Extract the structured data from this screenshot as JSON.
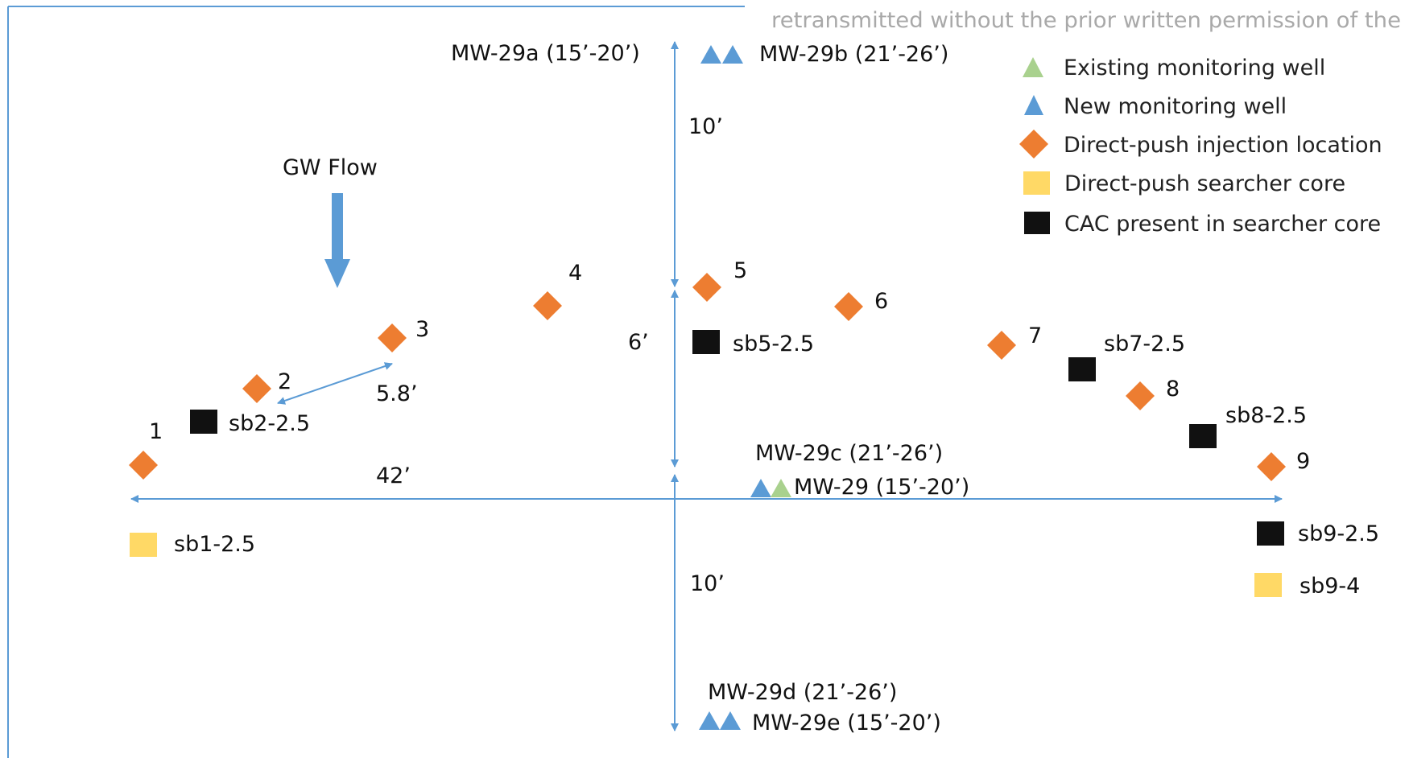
{
  "watermark": "retransmitted without the prior written permission of the",
  "colors": {
    "frame": "#5b9bd5",
    "arrow": "#5b9bd5",
    "injection": "#ed7d31",
    "searcher_core": "#ffd966",
    "cac_core": "#111111",
    "new_well": "#5b9bd5",
    "existing_well": "#a9d18e"
  },
  "legend": [
    {
      "label": "Existing monitoring well",
      "icon": "existing-well-triangle-icon"
    },
    {
      "label": "New monitoring well",
      "icon": "new-well-triangle-icon"
    },
    {
      "label": "Direct-push injection location",
      "icon": "injection-diamond-icon"
    },
    {
      "label": "Direct-push searcher core",
      "icon": "searcher-core-square-icon"
    },
    {
      "label": "CAC present in searcher core",
      "icon": "cac-core-square-icon"
    }
  ],
  "flow_label": "GW Flow",
  "wells": {
    "mw29a": "MW-29a (15’-20’)",
    "mw29b": "MW-29b (21’-26’)",
    "mw29c": "MW-29c (21’-26’)",
    "mw29": "MW-29 (15’-20’)",
    "mw29d": "MW-29d (21’-26’)",
    "mw29e": "MW-29e (15’-20’)"
  },
  "dimensions": {
    "top_vertical": "10’",
    "middle_vertical": "6’",
    "bottom_vertical": "10’",
    "horizontal": "42’",
    "spacing": "5.8’"
  },
  "injection_points": [
    "1",
    "2",
    "3",
    "4",
    "5",
    "6",
    "7",
    "8",
    "9"
  ],
  "cores": {
    "sb1": "sb1-2.5",
    "sb2": "sb2-2.5",
    "sb5": "sb5-2.5",
    "sb7": "sb7-2.5",
    "sb8": "sb8-2.5",
    "sb9": "sb9-2.5",
    "sb9b": "sb9-4"
  }
}
